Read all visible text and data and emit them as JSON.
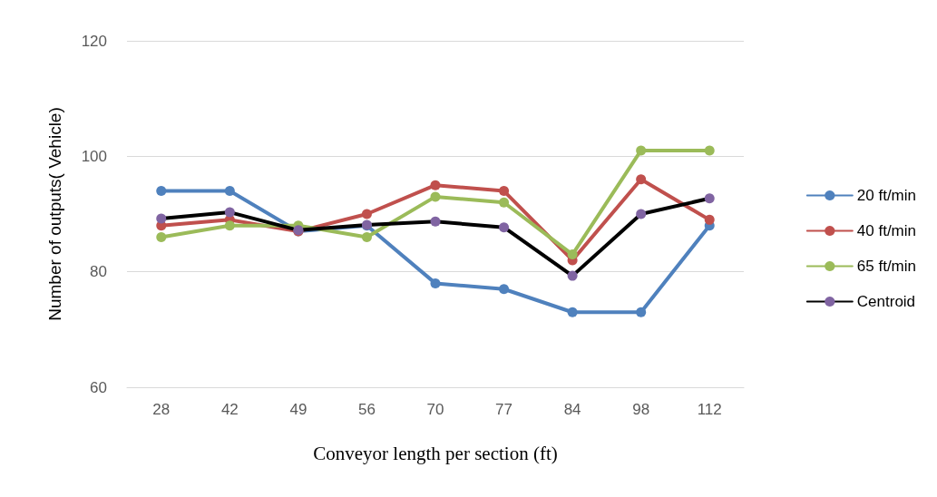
{
  "chart_data": {
    "type": "line",
    "xlabel": "Conveyor length per section (ft)",
    "ylabel": "Number of outputs( Vehicle)",
    "categories": [
      "28",
      "42",
      "49",
      "56",
      "70",
      "77",
      "84",
      "98",
      "112"
    ],
    "series": [
      {
        "name": "20 ft/min",
        "color": "#4f81bd",
        "values": [
          94,
          94,
          87,
          88,
          78,
          77,
          73,
          73,
          88
        ]
      },
      {
        "name": "40 ft/min",
        "color": "#c0504d",
        "values": [
          88,
          89,
          87,
          90,
          95,
          94,
          82,
          96,
          89
        ]
      },
      {
        "name": "65 ft/min",
        "color": "#9bbb59",
        "values": [
          86,
          88,
          88,
          86,
          93,
          92,
          83,
          101,
          101
        ]
      },
      {
        "name": "Centroid",
        "color": "#000000",
        "colors": [
          "#8064a2",
          "#8064a2",
          "#8064a2",
          "#8064a2",
          "#8064a2",
          "#8064a2",
          "#8064a2",
          "#8064a2",
          "#8064a2"
        ],
        "values": [
          89.2,
          90.3,
          87.2,
          88.1,
          88.7,
          87.7,
          79.3,
          90,
          92.7
        ]
      }
    ],
    "ylim": [
      60,
      120
    ],
    "yticks": [
      60,
      80,
      100,
      120
    ],
    "grid": "y",
    "legend": "right",
    "marker": "circle",
    "line_style": "solid"
  }
}
